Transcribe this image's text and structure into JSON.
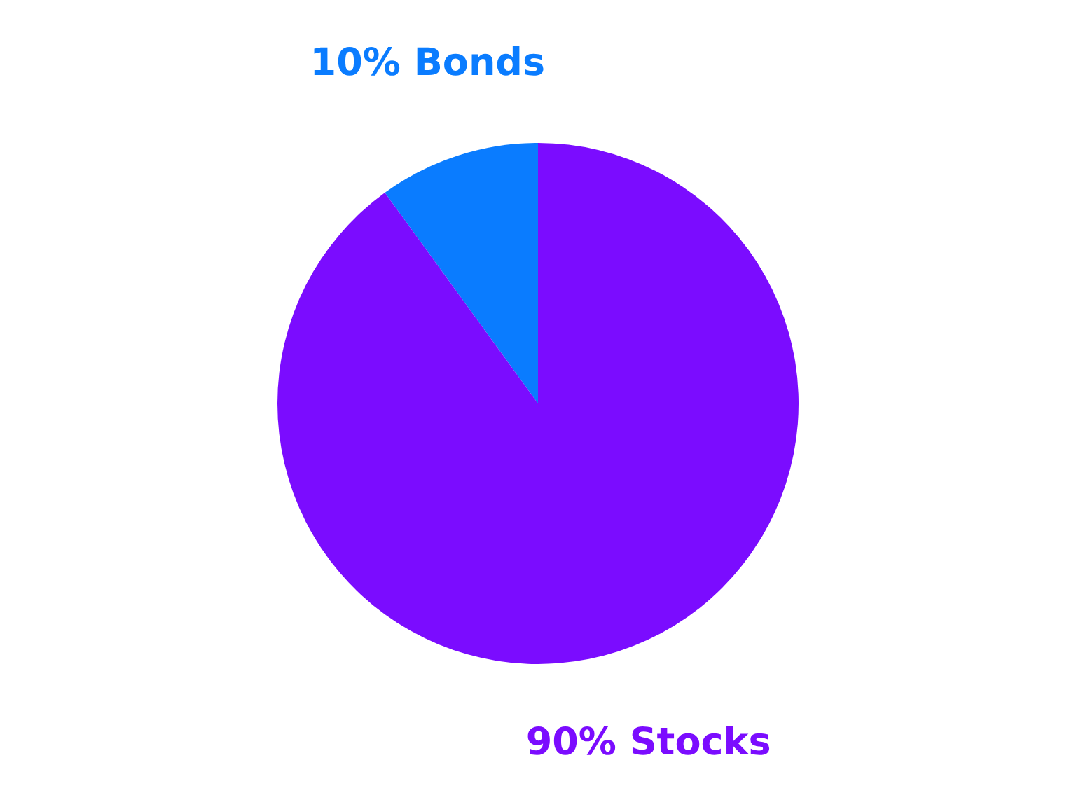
{
  "chart_data": {
    "type": "pie",
    "categories": [
      "Bonds",
      "Stocks"
    ],
    "values": [
      10,
      90
    ],
    "colors": [
      "#0a7cff",
      "#7b0cff"
    ],
    "value_labels": [
      "10%",
      "90%"
    ]
  }
}
